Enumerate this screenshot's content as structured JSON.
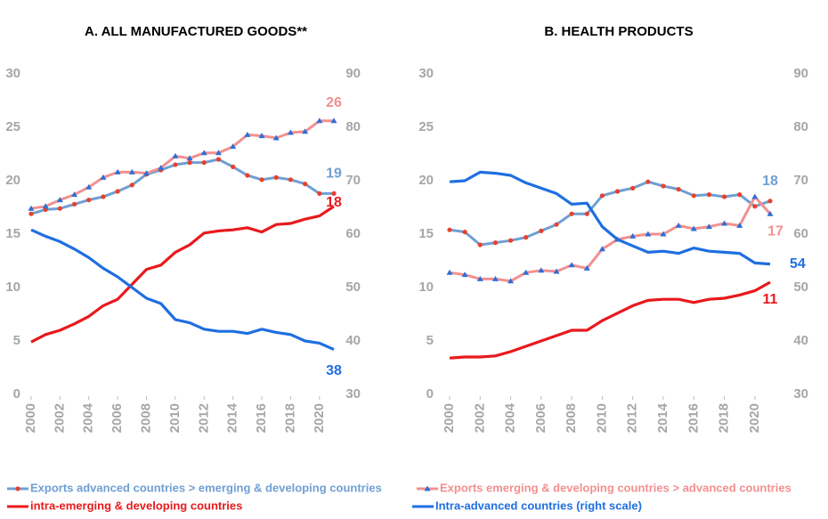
{
  "chart_data": [
    {
      "type": "line",
      "title": "A. ALL MANUFACTURED GOODS**",
      "x": [
        2000,
        2001,
        2002,
        2003,
        2004,
        2005,
        2006,
        2007,
        2008,
        2009,
        2010,
        2011,
        2012,
        2013,
        2014,
        2015,
        2016,
        2017,
        2018,
        2019,
        2020,
        2021
      ],
      "xlim": [
        2000,
        2021
      ],
      "xticks": [
        2000,
        2002,
        2004,
        2006,
        2008,
        2010,
        2012,
        2014,
        2016,
        2018,
        2020
      ],
      "ylim": [
        0,
        30
      ],
      "yticks": [
        0,
        5,
        10,
        15,
        20,
        25,
        30
      ],
      "y2lim": [
        30,
        90
      ],
      "y2ticks": [
        30,
        40,
        50,
        60,
        70,
        80,
        90
      ],
      "series": [
        {
          "name": "Exports  advanced countries > emerging & developing countries",
          "color": "#6f9fd3",
          "marker": "circle",
          "marker_color": "#e8412f",
          "end_label": 19,
          "values": [
            16.9,
            17.3,
            17.4,
            17.8,
            18.2,
            18.5,
            19.0,
            19.6,
            20.6,
            21.0,
            21.5,
            21.7,
            21.7,
            22.0,
            21.3,
            20.5,
            20.1,
            20.3,
            20.1,
            19.7,
            18.8,
            18.8
          ]
        },
        {
          "name": "Exports  emerging & developing countries > advanced countries",
          "color": "#f29090",
          "marker": "triangle",
          "marker_color": "#2e6fd6",
          "end_label": 26,
          "values": [
            17.4,
            17.6,
            18.2,
            18.7,
            19.4,
            20.3,
            20.8,
            20.8,
            20.7,
            21.2,
            22.3,
            22.1,
            22.6,
            22.6,
            23.2,
            24.3,
            24.2,
            24.0,
            24.5,
            24.6,
            25.6,
            25.6
          ]
        },
        {
          "name": "intra-emerging & developing countries",
          "color": "#e8191c",
          "end_label": 18,
          "values": [
            4.9,
            5.6,
            6.0,
            6.6,
            7.3,
            8.3,
            8.9,
            10.3,
            11.7,
            12.1,
            13.3,
            14.0,
            15.1,
            15.3,
            15.4,
            15.6,
            15.2,
            15.9,
            16.0,
            16.4,
            16.7,
            17.6
          ]
        },
        {
          "name": "Intra-advanced countries (right scale)",
          "color": "#1f6fe0",
          "axis": "y2",
          "end_label": 38,
          "values": [
            60.8,
            59.6,
            58.6,
            57.2,
            55.6,
            53.6,
            52.0,
            50.0,
            48.0,
            47.0,
            44.0,
            43.4,
            42.2,
            41.8,
            41.8,
            41.4,
            42.2,
            41.6,
            41.2,
            40.0,
            39.6,
            38.4
          ]
        }
      ]
    },
    {
      "type": "line",
      "title": "B. HEALTH PRODUCTS",
      "x": [
        2000,
        2001,
        2002,
        2003,
        2004,
        2005,
        2006,
        2007,
        2008,
        2009,
        2010,
        2011,
        2012,
        2013,
        2014,
        2015,
        2016,
        2017,
        2018,
        2019,
        2020,
        2021
      ],
      "xlim": [
        2000,
        2021
      ],
      "xticks": [
        2000,
        2002,
        2004,
        2006,
        2008,
        2010,
        2012,
        2014,
        2016,
        2018,
        2020
      ],
      "ylim": [
        0,
        30
      ],
      "yticks": [
        0,
        5,
        10,
        15,
        20,
        25,
        30
      ],
      "y2lim": [
        30,
        90
      ],
      "y2ticks": [
        30,
        40,
        50,
        60,
        70,
        80,
        90
      ],
      "series": [
        {
          "color": "#6f9fd3",
          "marker": "circle",
          "marker_color": "#e8412f",
          "end_label": 18,
          "values": [
            15.4,
            15.2,
            14.0,
            14.2,
            14.4,
            14.7,
            15.3,
            15.9,
            16.9,
            16.9,
            18.6,
            19.0,
            19.3,
            19.9,
            19.5,
            19.2,
            18.6,
            18.7,
            18.5,
            18.7,
            17.6,
            18.1
          ]
        },
        {
          "color": "#f29090",
          "marker": "triangle",
          "marker_color": "#2e6fd6",
          "end_label": 17,
          "values": [
            11.4,
            11.2,
            10.8,
            10.8,
            10.6,
            11.4,
            11.6,
            11.5,
            12.1,
            11.8,
            13.6,
            14.5,
            14.8,
            15.0,
            15.0,
            15.8,
            15.5,
            15.7,
            16.0,
            15.8,
            18.5,
            16.9
          ]
        },
        {
          "color": "#e8191c",
          "end_label": 11,
          "values": [
            3.4,
            3.5,
            3.5,
            3.6,
            4.0,
            4.5,
            5.0,
            5.5,
            6.0,
            6.0,
            6.9,
            7.6,
            8.3,
            8.8,
            8.9,
            8.9,
            8.6,
            8.9,
            9.0,
            9.3,
            9.7,
            10.5
          ]
        },
        {
          "color": "#1f6fe0",
          "axis": "y2",
          "end_label": 54,
          "values": [
            69.8,
            70.0,
            71.6,
            71.4,
            71.0,
            69.6,
            68.6,
            67.6,
            65.6,
            65.8,
            61.4,
            59.0,
            57.8,
            56.6,
            56.8,
            56.4,
            57.4,
            56.8,
            56.6,
            56.4,
            54.6,
            54.4
          ]
        }
      ]
    }
  ]
}
